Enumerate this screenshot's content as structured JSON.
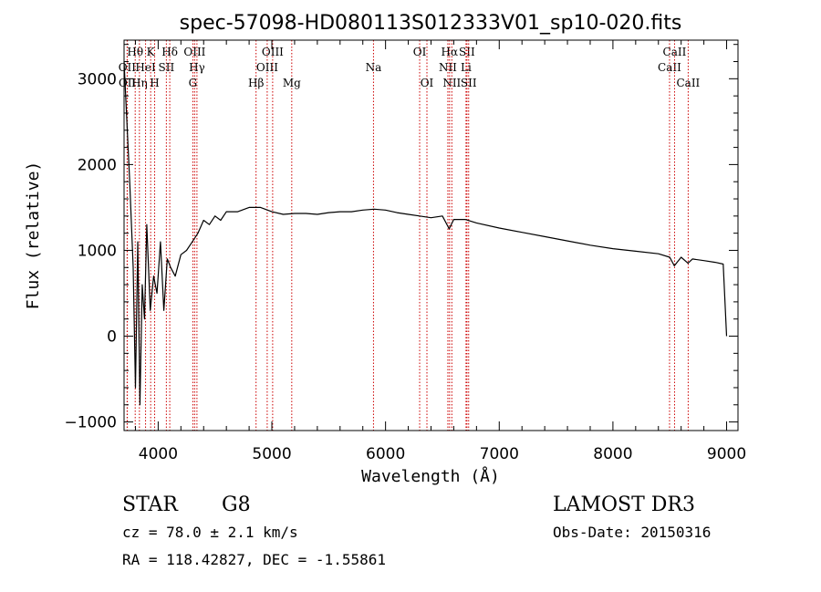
{
  "chart_data": {
    "type": "line",
    "title": "spec-57098-HD080113S012333V01_sp10-020.fits",
    "xlabel": "Wavelength (Å)",
    "ylabel": "Flux (relative)",
    "xlim": [
      3700,
      9100
    ],
    "ylim": [
      -1100,
      3450
    ],
    "x_ticks": [
      4000,
      5000,
      6000,
      7000,
      8000,
      9000
    ],
    "y_ticks": [
      -1000,
      0,
      1000,
      2000,
      3000
    ],
    "grid": false,
    "series": [
      {
        "name": "spectrum",
        "x": [
          3700,
          3750,
          3780,
          3800,
          3820,
          3840,
          3860,
          3880,
          3900,
          3930,
          3960,
          3990,
          4020,
          4050,
          4080,
          4110,
          4150,
          4200,
          4250,
          4300,
          4350,
          4400,
          4450,
          4500,
          4550,
          4600,
          4700,
          4800,
          4900,
          5000,
          5100,
          5200,
          5300,
          5400,
          5500,
          5600,
          5700,
          5800,
          5900,
          6000,
          6100,
          6200,
          6300,
          6400,
          6500,
          6560,
          6600,
          6700,
          6800,
          7000,
          7200,
          7400,
          7600,
          7800,
          8000,
          8200,
          8400,
          8500,
          8540,
          8600,
          8660,
          8700,
          8800,
          8900,
          8970,
          9000
        ],
        "y": [
          3200,
          1800,
          800,
          -600,
          1100,
          -800,
          600,
          200,
          1300,
          300,
          700,
          500,
          1100,
          300,
          900,
          800,
          700,
          950,
          1000,
          1100,
          1200,
          1350,
          1300,
          1400,
          1350,
          1450,
          1450,
          1500,
          1500,
          1450,
          1420,
          1430,
          1430,
          1420,
          1440,
          1450,
          1450,
          1470,
          1480,
          1470,
          1440,
          1420,
          1400,
          1380,
          1400,
          1250,
          1360,
          1360,
          1320,
          1260,
          1210,
          1160,
          1110,
          1060,
          1020,
          990,
          960,
          920,
          820,
          920,
          850,
          900,
          880,
          860,
          840,
          0
        ]
      }
    ],
    "lines": [
      {
        "name": "OII",
        "wavelength": 3727,
        "row": 2
      },
      {
        "name": "OII",
        "wavelength": 3729,
        "row": 3
      },
      {
        "name": "Hθ",
        "wavelength": 3798,
        "row": 1
      },
      {
        "name": "Hη",
        "wavelength": 3835,
        "row": 3
      },
      {
        "name": "HeI",
        "wavelength": 3889,
        "row": 2
      },
      {
        "name": "K",
        "wavelength": 3934,
        "row": 1
      },
      {
        "name": "H",
        "wavelength": 3969,
        "row": 3
      },
      {
        "name": "SII",
        "wavelength": 4072,
        "row": 2
      },
      {
        "name": "Hδ",
        "wavelength": 4102,
        "row": 1
      },
      {
        "name": "OIII",
        "wavelength": 4321,
        "row": 1
      },
      {
        "name": "Hγ",
        "wavelength": 4341,
        "row": 2
      },
      {
        "name": "G",
        "wavelength": 4305,
        "row": 3
      },
      {
        "name": "Hβ",
        "wavelength": 4861,
        "row": 3
      },
      {
        "name": "OIII",
        "wavelength": 4959,
        "row": 2
      },
      {
        "name": "OIII",
        "wavelength": 5007,
        "row": 1
      },
      {
        "name": "Mg",
        "wavelength": 5175,
        "row": 3
      },
      {
        "name": "Na",
        "wavelength": 5894,
        "row": 2
      },
      {
        "name": "OI",
        "wavelength": 6300,
        "row": 1
      },
      {
        "name": "OI",
        "wavelength": 6364,
        "row": 3
      },
      {
        "name": "NII",
        "wavelength": 6548,
        "row": 2
      },
      {
        "name": "NII",
        "wavelength": 6583,
        "row": 3
      },
      {
        "name": "Hα",
        "wavelength": 6563,
        "row": 1
      },
      {
        "name": "SII",
        "wavelength": 6716,
        "row": 1
      },
      {
        "name": "Li",
        "wavelength": 6708,
        "row": 2
      },
      {
        "name": "SII",
        "wavelength": 6731,
        "row": 3
      },
      {
        "name": "CaII",
        "wavelength": 8498,
        "row": 2
      },
      {
        "name": "CaII",
        "wavelength": 8542,
        "row": 1
      },
      {
        "name": "CaII",
        "wavelength": 8662,
        "row": 3
      }
    ]
  },
  "info": {
    "class_label": "STAR",
    "subclass": "G8",
    "survey": "LAMOST DR3",
    "cz_text": "cz = 78.0 ± 2.1 km/s",
    "obs_date": "Obs-Date: 20150316",
    "coords_text": "RA = 118.42827, DEC =  -1.55861"
  },
  "colors": {
    "line_marker": "#cc0000",
    "spectrum": "#000000"
  }
}
